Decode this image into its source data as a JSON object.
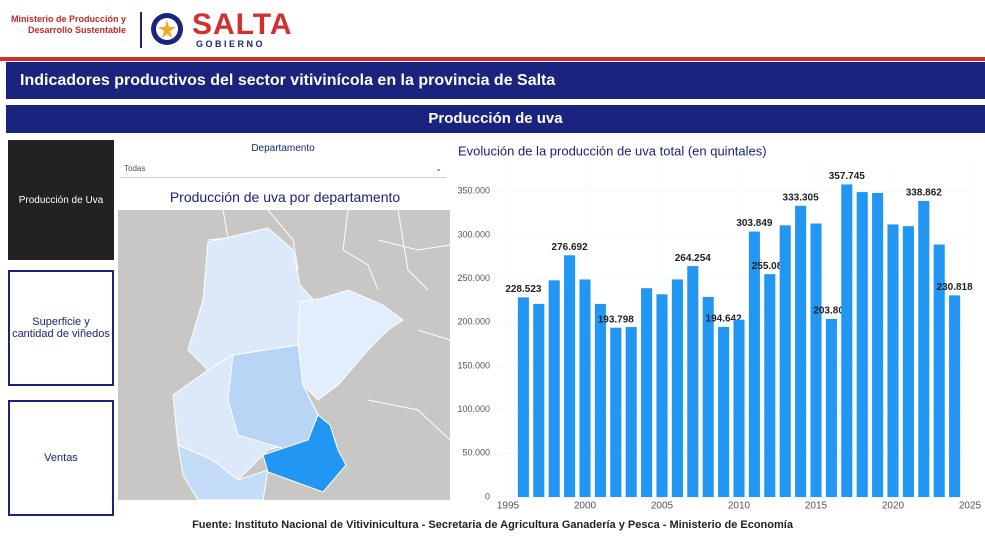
{
  "header": {
    "ministry": [
      "Ministerio de Producción y",
      "Desarrollo Sustentable"
    ],
    "brand": "SALTA",
    "brand_sub": "G O B I E R N O",
    "title": "Indicadores productivos del sector vitivinícola en la provincia de Salta",
    "section": "Producción de uva"
  },
  "nav": [
    "Producción de Uva",
    "Superficie y cantidad de viñedos",
    "Ventas"
  ],
  "filter": {
    "label": "Departamento",
    "value": "Todas"
  },
  "map": {
    "title": "Producción de uva por departamento"
  },
  "chart_data": {
    "type": "bar",
    "title": "Evolución de la producción de uva total (en quintales)",
    "x": [
      1996,
      1997,
      1998,
      1999,
      2000,
      2001,
      2002,
      2003,
      2004,
      2005,
      2006,
      2007,
      2008,
      2009,
      2010,
      2011,
      2012,
      2013,
      2014,
      2015,
      2016,
      2017,
      2018,
      2019,
      2020,
      2021,
      2022,
      2023,
      2024
    ],
    "values": [
      228523,
      221000,
      248000,
      276692,
      249000,
      221000,
      193798,
      194500,
      239000,
      232000,
      249000,
      264254,
      229000,
      194642,
      203000,
      303849,
      255082,
      311000,
      333305,
      313000,
      203808,
      357745,
      349000,
      348000,
      312000,
      310000,
      338862,
      289000,
      230818
    ],
    "value_labels": [
      "228.523",
      null,
      null,
      "276.692",
      null,
      null,
      "193.798",
      null,
      null,
      null,
      null,
      "264.254",
      null,
      "194.642",
      null,
      "303.849",
      "255.082",
      null,
      "333.305",
      null,
      "203.808",
      "357.745",
      null,
      null,
      null,
      null,
      "338.862",
      null,
      "230.818"
    ],
    "color": "#2196f3",
    "xlim": [
      1995,
      2025
    ],
    "xticks": [
      1995,
      2000,
      2005,
      2010,
      2015,
      2020,
      2025
    ],
    "ylim": [
      0,
      380000
    ],
    "yticks": [
      0,
      {
        "value": 50000,
        "label": "50.000"
      },
      {
        "value": 100000,
        "label": "100.000"
      },
      {
        "value": 150000,
        "label": "150.000"
      },
      {
        "value": 200000,
        "label": "200.000"
      },
      {
        "value": 250000,
        "label": "250.000"
      },
      {
        "value": 300000,
        "label": "300.000"
      },
      {
        "value": 350000,
        "label": "350.000"
      }
    ],
    "grid": true
  },
  "footer": "Fuente: Instituto Nacional de Vitivinicultura - Secretaria de Agricultura Ganadería y Pesca - Ministerio de Economía"
}
